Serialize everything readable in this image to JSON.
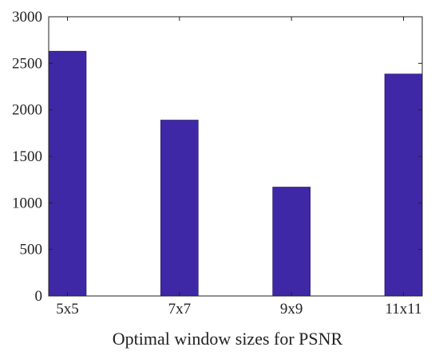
{
  "chart_data": {
    "type": "bar",
    "title": "",
    "xlabel": "Optimal window sizes for PSNR",
    "ylabel": "",
    "categories": [
      "5x5",
      "7x7",
      "9x9",
      "11x11"
    ],
    "values": [
      2630,
      1890,
      1170,
      2385
    ],
    "ylim": [
      0,
      3000
    ],
    "yticks": [
      "0",
      "500",
      "1000",
      "1500",
      "2000",
      "2500",
      "3000"
    ],
    "grid": false,
    "bar_color": "#3f28a6"
  }
}
